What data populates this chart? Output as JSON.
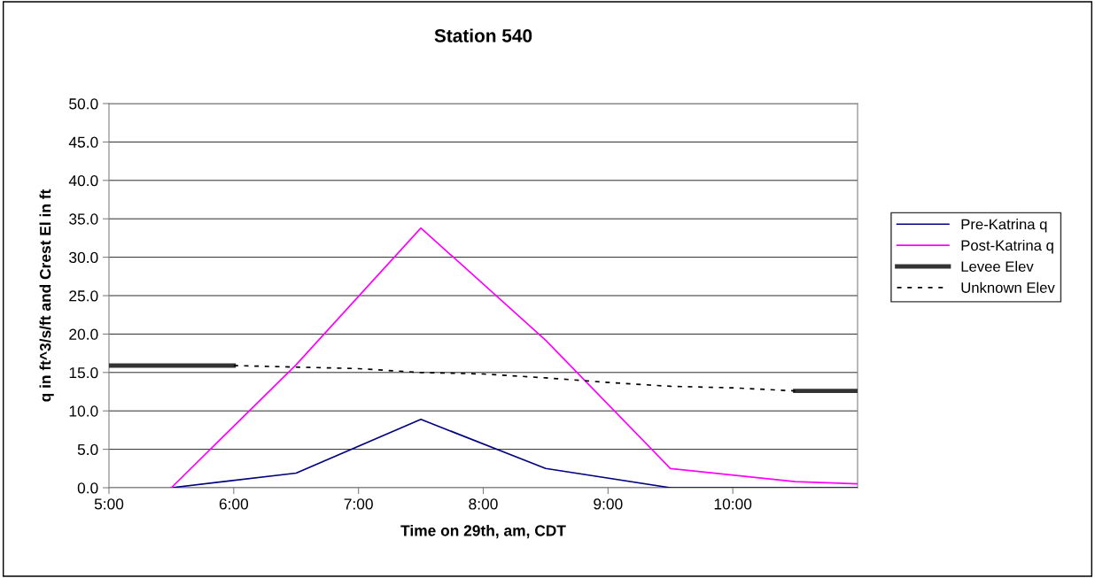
{
  "chart_data": {
    "type": "line",
    "title": "Station 540",
    "xlabel": "Time on 29th, am, CDT",
    "ylabel": "q in ft^3/s/ft and Crest El in ft",
    "xlim": [
      5,
      11
    ],
    "xticks": [
      {
        "value": 5,
        "label": "5:00"
      },
      {
        "value": 6,
        "label": "6:00"
      },
      {
        "value": 7,
        "label": "7:00"
      },
      {
        "value": 8,
        "label": "8:00"
      },
      {
        "value": 9,
        "label": "9:00"
      },
      {
        "value": 10,
        "label": "10:00"
      }
    ],
    "ylim": [
      0,
      50
    ],
    "yticks": [
      {
        "value": 0,
        "label": "0.0"
      },
      {
        "value": 5,
        "label": "5.0"
      },
      {
        "value": 10,
        "label": "10.0"
      },
      {
        "value": 15,
        "label": "15.0"
      },
      {
        "value": 20,
        "label": "20.0"
      },
      {
        "value": 25,
        "label": "25.0"
      },
      {
        "value": 30,
        "label": "30.0"
      },
      {
        "value": 35,
        "label": "35.0"
      },
      {
        "value": 40,
        "label": "40.0"
      },
      {
        "value": 45,
        "label": "45.0"
      },
      {
        "value": 50,
        "label": "50.0"
      }
    ],
    "grid": "y",
    "legend": "right",
    "marker": "none",
    "series": [
      {
        "name": "Pre-Katrina q",
        "color": "#000080",
        "x": [
          5.5,
          6.5,
          7.5,
          8.5,
          9.5,
          11
        ],
        "values": [
          0,
          1.9,
          8.9,
          2.5,
          0,
          0
        ]
      },
      {
        "name": "Post-Katrina q",
        "color": "#ff00ff",
        "x": [
          5.5,
          6.5,
          7.5,
          8.5,
          9.5,
          10.5,
          11
        ],
        "values": [
          0,
          16.0,
          33.8,
          19.2,
          2.5,
          0.8,
          0.5
        ]
      },
      {
        "name": "Levee Elev",
        "color": "#333333",
        "line_style": "solid",
        "x": [
          5,
          6,
          null,
          10.5,
          11
        ],
        "values": [
          15.9,
          15.9,
          null,
          12.6,
          12.6
        ]
      },
      {
        "name": "Unknown Elev",
        "color": "#000000",
        "line_style": "dashed",
        "x": [
          6,
          6.5,
          7,
          7.5,
          8,
          8.5,
          9,
          9.5,
          10,
          10.5
        ],
        "values": [
          15.9,
          15.7,
          15.5,
          15.0,
          14.8,
          14.3,
          13.7,
          13.2,
          13.0,
          12.6
        ]
      }
    ]
  }
}
